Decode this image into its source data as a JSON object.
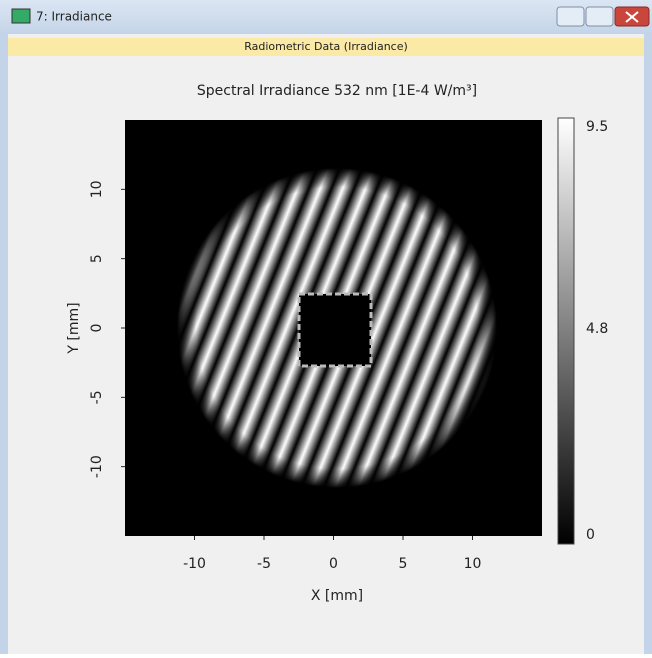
{
  "window": {
    "title": "7: Irradiance",
    "panel_title": "Radiometric Data (Irradiance)"
  },
  "chart_data": {
    "type": "heatmap",
    "title": "Spectral Irradiance 532 nm  [1E-4 W/m³]",
    "x_label": "X [mm]",
    "y_label": "Y [mm]",
    "xlim": [
      -15,
      15
    ],
    "ylim": [
      -15,
      15
    ],
    "xticks": [
      -10,
      -5,
      0,
      5,
      10
    ],
    "yticks": [
      -10,
      -5,
      0,
      5,
      10
    ],
    "colorbar": {
      "clim": [
        0,
        9.5
      ],
      "ticks": [
        0,
        4.8,
        9.5
      ]
    }
  }
}
